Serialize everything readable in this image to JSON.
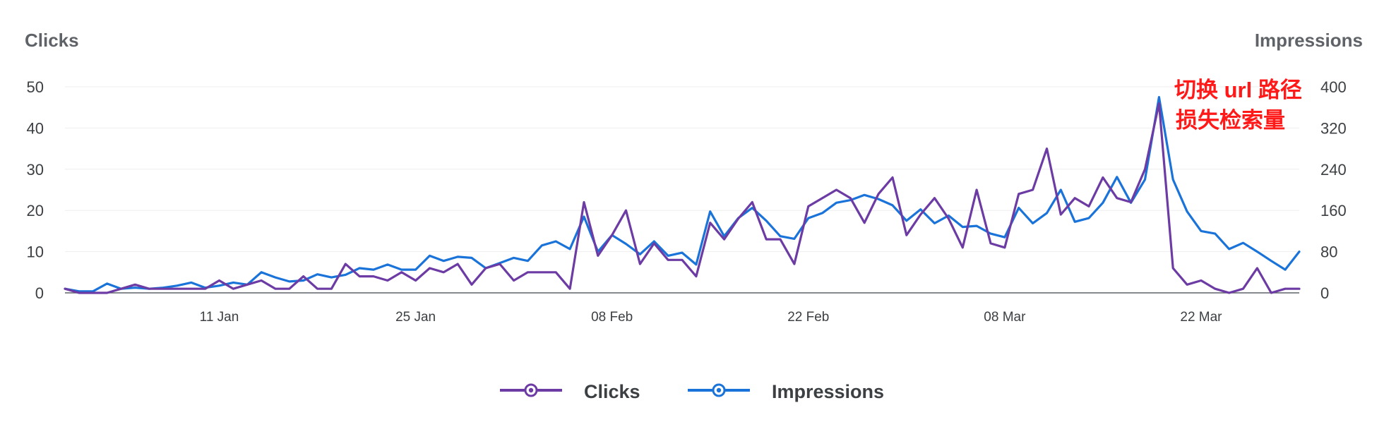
{
  "chart_data": {
    "type": "line",
    "title": "",
    "ylabel_left": "Clicks",
    "ylabel_right": "Impressions",
    "y_left_ticks": [
      0,
      10,
      20,
      30,
      40,
      50
    ],
    "y_right_ticks": [
      0,
      80,
      160,
      240,
      320,
      400
    ],
    "ylim_left": [
      0,
      50
    ],
    "ylim_right": [
      0,
      400
    ],
    "x_start_date": "2022-12-30",
    "x_end_date": "2022-03-30",
    "x_ticks": [
      {
        "label": "11 Jan",
        "index": 11
      },
      {
        "label": "25 Jan",
        "index": 25
      },
      {
        "label": "08 Feb",
        "index": 39
      },
      {
        "label": "22 Feb",
        "index": 53
      },
      {
        "label": "08 Mar",
        "index": 67
      },
      {
        "label": "22 Mar",
        "index": 81
      }
    ],
    "grid": true,
    "legend_position": "bottom-center",
    "series": [
      {
        "name": "Clicks",
        "axis": "left",
        "color": "#6c3ba3",
        "values": [
          1,
          0,
          0,
          0,
          1,
          2,
          1,
          1,
          1,
          1,
          1,
          3,
          1,
          2,
          3,
          1,
          1,
          4,
          1,
          1,
          7,
          4,
          4,
          3,
          5,
          3,
          6,
          5,
          7,
          2,
          6,
          7,
          3,
          5,
          5,
          5,
          1,
          22,
          9,
          14,
          20,
          7,
          12,
          8,
          8,
          4,
          17,
          13,
          18,
          22,
          13,
          13,
          7,
          21,
          23,
          25,
          23,
          17,
          24,
          28,
          14,
          19,
          23,
          18,
          11,
          25,
          12,
          11,
          24,
          25,
          35,
          19,
          23,
          21,
          28,
          23,
          22,
          30,
          46,
          6,
          2,
          3,
          1,
          0,
          1,
          6,
          0,
          1,
          1
        ]
      },
      {
        "name": "Impressions",
        "axis": "right",
        "color": "#1a73d9",
        "values": [
          8,
          3,
          3,
          18,
          8,
          10,
          8,
          10,
          14,
          20,
          10,
          14,
          20,
          16,
          40,
          30,
          22,
          24,
          36,
          30,
          35,
          48,
          45,
          55,
          45,
          45,
          72,
          62,
          70,
          68,
          48,
          58,
          68,
          62,
          92,
          100,
          85,
          148,
          80,
          112,
          95,
          75,
          100,
          72,
          78,
          55,
          158,
          110,
          145,
          165,
          140,
          110,
          105,
          145,
          155,
          175,
          180,
          190,
          182,
          170,
          140,
          162,
          135,
          150,
          128,
          130,
          115,
          108,
          165,
          135,
          155,
          200,
          138,
          145,
          175,
          225,
          175,
          220,
          380,
          220,
          158,
          120,
          115,
          85,
          97,
          80,
          62,
          45,
          80
        ]
      }
    ],
    "annotation": {
      "line1": "切换 url 路径",
      "line2": "损失检索量"
    },
    "legend": [
      {
        "label": "Clicks"
      },
      {
        "label": "Impressions"
      }
    ]
  }
}
